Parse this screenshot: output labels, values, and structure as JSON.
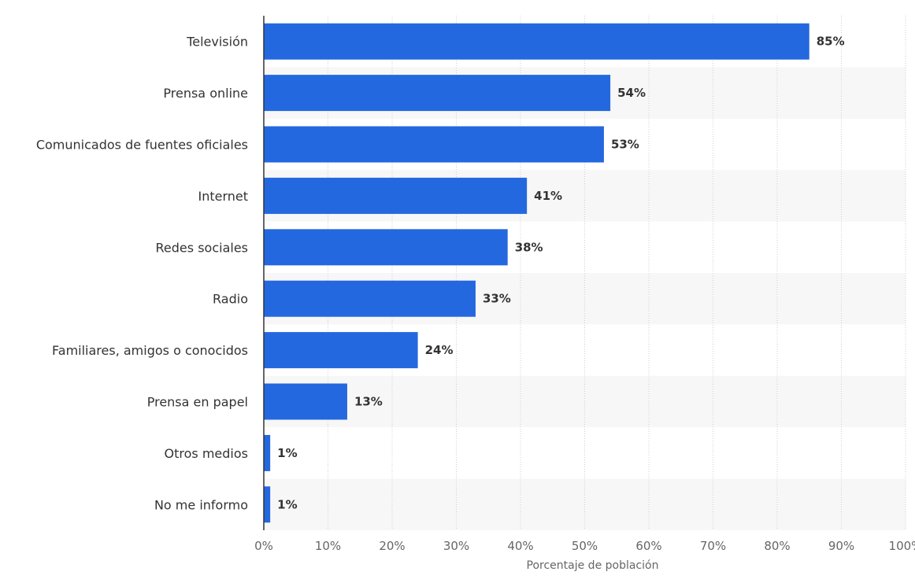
{
  "chart_data": {
    "type": "bar",
    "orientation": "horizontal",
    "categories": [
      "Televisión",
      "Prensa online",
      "Comunicados de fuentes oficiales",
      "Internet",
      "Redes sociales",
      "Radio",
      "Familiares, amigos o conocidos",
      "Prensa en papel",
      "Otros medios",
      "No me informo"
    ],
    "values": [
      85,
      54,
      53,
      41,
      38,
      33,
      24,
      13,
      1,
      1
    ],
    "value_labels": [
      "85%",
      "54%",
      "53%",
      "41%",
      "38%",
      "33%",
      "24%",
      "13%",
      "1%",
      "1%"
    ],
    "xlabel": "Porcentaje de población",
    "ylabel": "",
    "xlim": [
      0,
      100
    ],
    "x_ticks": [
      0,
      10,
      20,
      30,
      40,
      50,
      60,
      70,
      80,
      90,
      100
    ],
    "x_tick_labels": [
      "0%",
      "10%",
      "20%",
      "30%",
      "40%",
      "50%",
      "60%",
      "70%",
      "80%",
      "90%",
      "100%"
    ],
    "grid": "vertical dotted",
    "legend": "none",
    "colors": {
      "bar": "#2468df",
      "band": "#f7f7f7",
      "grid": "#cfcfcf",
      "axis": "#333333"
    }
  }
}
